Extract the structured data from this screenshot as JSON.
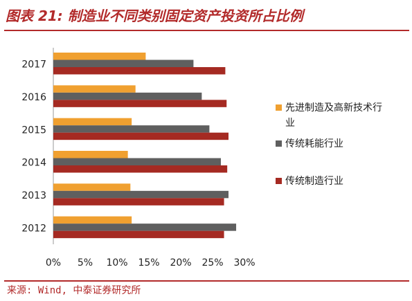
{
  "header": {
    "title": "图表 21:  制造业不同类别固定资产投资所占比例"
  },
  "footer": {
    "source": "来源: Wind, 中泰证券研究所"
  },
  "colors": {
    "brand_red": "#b22a2a"
  },
  "chart_data": {
    "type": "bar",
    "orientation": "horizontal",
    "categories": [
      "2017",
      "2016",
      "2015",
      "2014",
      "2013",
      "2012"
    ],
    "series": [
      {
        "name": "先进制造及高新技术行业",
        "color": "#f0a030",
        "values": [
          14.5,
          12.9,
          12.3,
          11.7,
          12.1,
          12.3
        ]
      },
      {
        "name": "传统耗能行业",
        "color": "#5f5f5f",
        "values": [
          22.0,
          23.3,
          24.5,
          26.3,
          27.5,
          28.7
        ]
      },
      {
        "name": "传统制造行业",
        "color": "#a52a22",
        "values": [
          27.0,
          27.2,
          27.5,
          27.3,
          26.8,
          26.8
        ]
      }
    ],
    "xlim": [
      0,
      30
    ],
    "xticks": [
      "0%",
      "5%",
      "10%",
      "15%",
      "20%",
      "25%",
      "30%"
    ],
    "xlabel": "",
    "ylabel": "",
    "grid": false,
    "legend_position": "right"
  }
}
